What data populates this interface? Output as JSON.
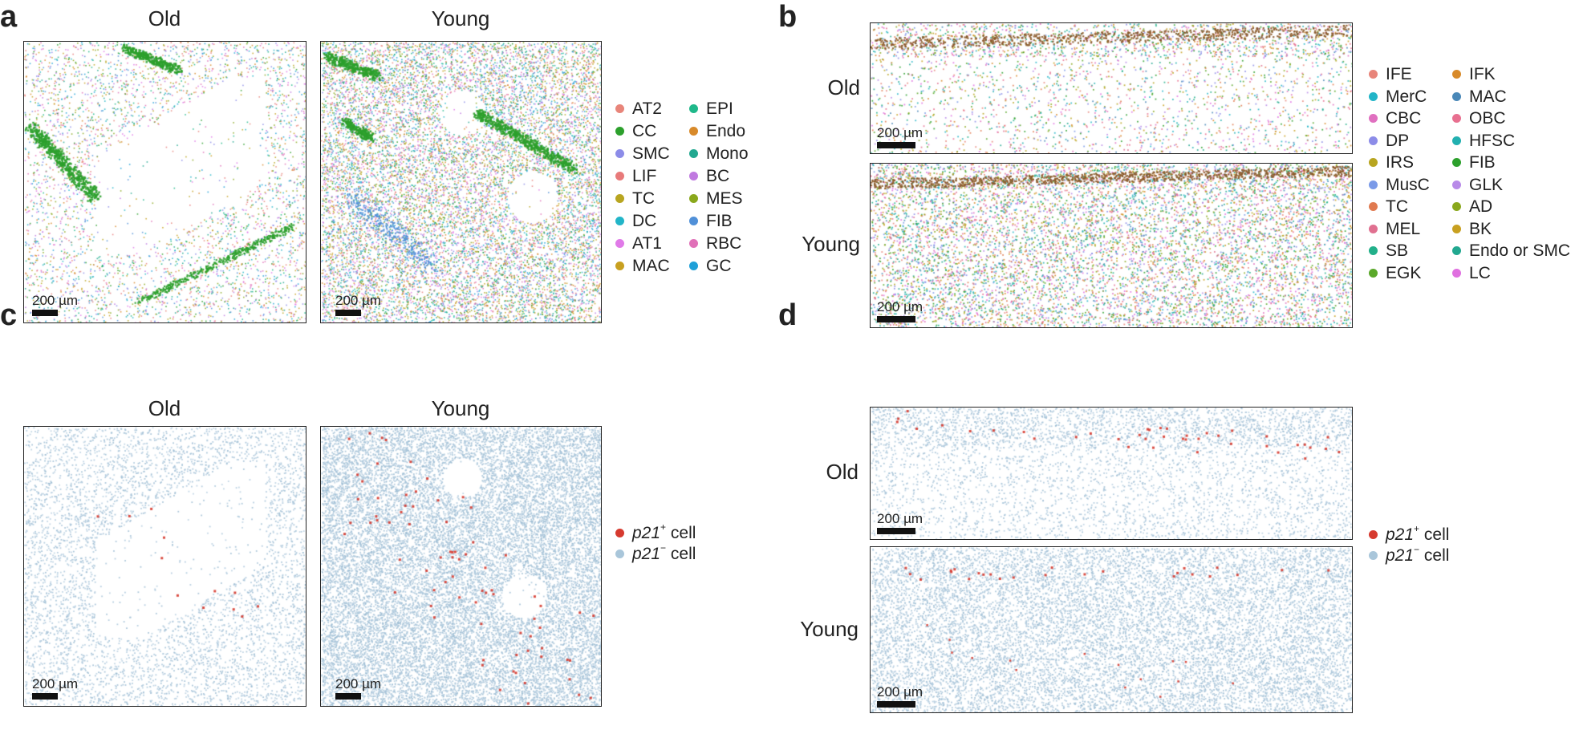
{
  "panels": {
    "a": {
      "letter": "a",
      "col_titles": [
        "Old",
        "Young"
      ],
      "scalebar": "200 µm"
    },
    "b": {
      "letter": "b",
      "row_titles": [
        "Old",
        "Young"
      ],
      "scalebar": "200 µm"
    },
    "c": {
      "letter": "c",
      "col_titles": [
        "Old",
        "Young"
      ],
      "scalebar": "200 µm"
    },
    "d": {
      "letter": "d",
      "row_titles": [
        "Old",
        "Young"
      ],
      "scalebar": "200 µm"
    }
  },
  "legend_a": [
    {
      "label": "AT2",
      "color": "#e8857a"
    },
    {
      "label": "CC",
      "color": "#2ca02c"
    },
    {
      "label": "SMC",
      "color": "#8c8ce8"
    },
    {
      "label": "LIF",
      "color": "#e87a7a"
    },
    {
      "label": "TC",
      "color": "#b8a520"
    },
    {
      "label": "DC",
      "color": "#22b5c8"
    },
    {
      "label": "AT1",
      "color": "#e07ae8"
    },
    {
      "label": "MAC",
      "color": "#c8a020"
    },
    {
      "label": "EPI",
      "color": "#1fb88a"
    },
    {
      "label": "Endo",
      "color": "#d88a2a"
    },
    {
      "label": "Mono",
      "color": "#22a890"
    },
    {
      "label": "BC",
      "color": "#c07ae0"
    },
    {
      "label": "MES",
      "color": "#8aa81c"
    },
    {
      "label": "FIB",
      "color": "#5090d8"
    },
    {
      "label": "RBC",
      "color": "#e070b8"
    },
    {
      "label": "GC",
      "color": "#1fa0d8"
    }
  ],
  "legend_b": [
    {
      "label": "IFE",
      "color": "#e8857a"
    },
    {
      "label": "MerC",
      "color": "#22b5c8"
    },
    {
      "label": "CBC",
      "color": "#e070c0"
    },
    {
      "label": "DP",
      "color": "#8c8ce8"
    },
    {
      "label": "IRS",
      "color": "#b8a520"
    },
    {
      "label": "MusC",
      "color": "#7a9ae8"
    },
    {
      "label": "TC",
      "color": "#e07a50"
    },
    {
      "label": "MEL",
      "color": "#e07090"
    },
    {
      "label": "SB",
      "color": "#22b08a"
    },
    {
      "label": "EGK",
      "color": "#5aa82a"
    },
    {
      "label": "IFK",
      "color": "#d88a2a"
    },
    {
      "label": "MAC",
      "color": "#4a88b8"
    },
    {
      "label": "OBC",
      "color": "#e87090"
    },
    {
      "label": "HFSC",
      "color": "#22b0b0"
    },
    {
      "label": "FIB",
      "color": "#2ca02c"
    },
    {
      "label": "GLK",
      "color": "#b88ae8"
    },
    {
      "label": "AD",
      "color": "#8aa81c"
    },
    {
      "label": "BK",
      "color": "#c8a020"
    },
    {
      "label": "Endo or SMC",
      "color": "#22a890"
    },
    {
      "label": "LC",
      "color": "#e070e0"
    }
  ],
  "p21_legend": {
    "pos_gene": "p21",
    "pos_sup": "+",
    "pos_suffix": " cell",
    "pos_color": "#d63a2f",
    "neg_gene": "p21",
    "neg_sup": "−",
    "neg_suffix": " cell",
    "neg_color": "#a9c6da"
  }
}
